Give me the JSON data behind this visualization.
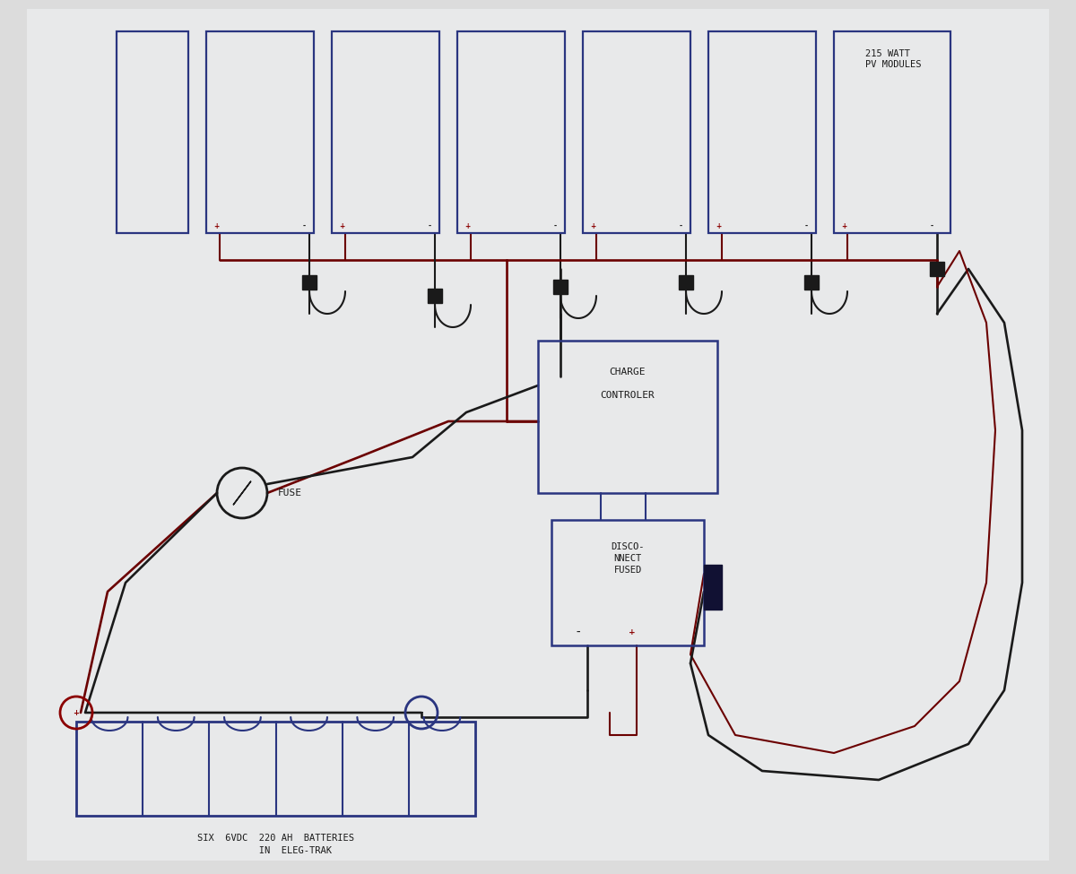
{
  "bg_color": "#dcdcdc",
  "paper_color": "#e8e8e8",
  "pv_color": "#2a3580",
  "wire_black": "#1a1a1a",
  "wire_red": "#6b0000",
  "box_color": "#2a3580",
  "text_color": "#1a1a1a",
  "pv_label": "215 WATT\nPV MODULES",
  "charge_label": "CHARGE\n\nCONTROLER",
  "disconnect_label": "DISCO-\nNNECT\nFUSED",
  "battery_label": "SIX  6VDC  220 AH  BATTERIES\n       IN  ELEG-TRAK",
  "fuse_label": "FUSE",
  "figw": 12.0,
  "figh": 9.75,
  "dpi": 100
}
